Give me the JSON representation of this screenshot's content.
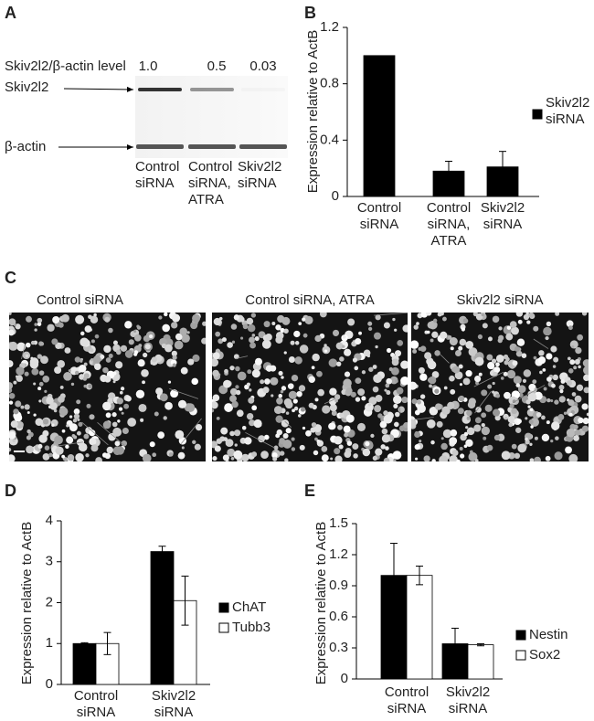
{
  "panel_labels": [
    "A",
    "B",
    "C",
    "D",
    "E"
  ],
  "blot": {
    "ratio_label": "Skiv2l2/β-actin level",
    "ratios": [
      1.0,
      0.5,
      0.03
    ],
    "ratio_labels": [
      "1.0",
      "0.5",
      "0.03"
    ],
    "bands": [
      "Skiv2l2",
      "β-actin"
    ],
    "lanes": [
      "Control siRNA",
      "Control siRNA, ATRA",
      "Skiv2l2 siRNA"
    ]
  },
  "micrographs": {
    "titles": [
      "Control siRNA",
      "Control siRNA, ATRA",
      "Skiv2l2 siRNA"
    ]
  },
  "chart_data": [
    {
      "type": "bar",
      "y_label": "Expression relative to ActB",
      "categories": [
        "Control siRNA",
        "Control siRNA, ATRA",
        "Skiv2l2 siRNA"
      ],
      "series": [
        {
          "name": "Skiv2l2 siRNA",
          "color": "#000000",
          "values": [
            1.0,
            0.18,
            0.21
          ],
          "errors": [
            null,
            0.07,
            0.11
          ]
        }
      ],
      "ylim": [
        0,
        1.2
      ],
      "yticks": [
        0,
        0.4,
        0.8,
        1.2
      ]
    },
    {
      "type": "bar",
      "y_label": "Expression relative to ActB",
      "categories": [
        "Control siRNA",
        "Skiv2l2 siRNA"
      ],
      "series": [
        {
          "name": "ChAT",
          "color": "#000000",
          "values": [
            1.0,
            3.25
          ],
          "errors": [
            0.02,
            0.13
          ]
        },
        {
          "name": "Tubb3",
          "color": "#ffffff",
          "values": [
            1.0,
            2.05
          ],
          "errors": [
            0.27,
            0.6
          ]
        }
      ],
      "ylim": [
        0,
        4
      ],
      "yticks": [
        0,
        1,
        2,
        3,
        4
      ]
    },
    {
      "type": "bar",
      "y_label": "Expression relative to ActB",
      "categories": [
        "Control siRNA",
        "Skiv2l2 siRNA"
      ],
      "series": [
        {
          "name": "Nestin",
          "color": "#000000",
          "values": [
            1.0,
            0.34
          ],
          "errors": [
            0.31,
            0.15
          ]
        },
        {
          "name": "Sox2",
          "color": "#ffffff",
          "values": [
            1.0,
            0.33
          ],
          "errors": [
            0.09,
            0.01
          ]
        }
      ],
      "ylim": [
        0,
        1.5
      ],
      "yticks": [
        0,
        0.3,
        0.6,
        0.9,
        1.2,
        1.5
      ]
    }
  ]
}
